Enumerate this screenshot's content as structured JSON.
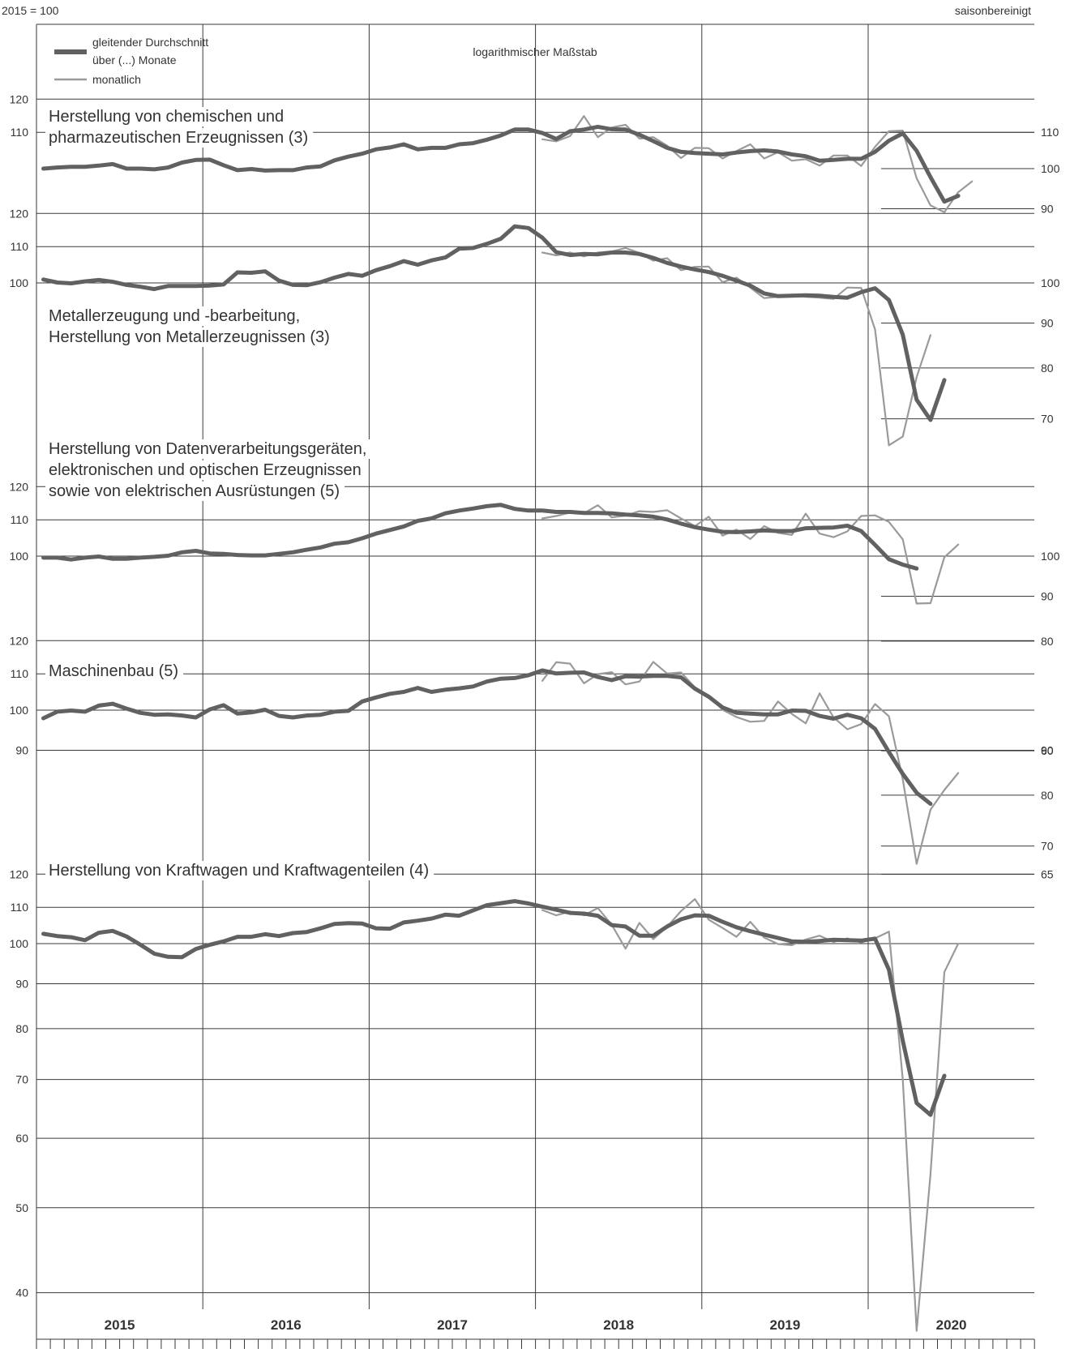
{
  "header": {
    "base": "2015 = 100",
    "adjustment": "saisonbereinigt",
    "scale_note": "logarithmischer Maßstab"
  },
  "legend": {
    "avg_line1": "gleitender Durchschnitt",
    "avg_line2": "über (...) Monate",
    "monthly": "monatlich"
  },
  "colors": {
    "avg": "#616161",
    "monthly": "#9a9a9a",
    "grid": "#3a3a3a",
    "text": "#333333"
  },
  "chart_data": [
    {
      "type": "line",
      "scale": "log",
      "title": [
        "Herstellung von chemischen und",
        "pharmazeutischen Erzeugnissen (3)"
      ],
      "left_ticks": [
        110,
        120
      ],
      "right_ticks": [
        90,
        100,
        110
      ],
      "series": [
        {
          "name": "gleitender Durchschnitt über (...) Monate",
          "start": "2015-01",
          "values": [
            100,
            100.3,
            100.5,
            100.5,
            100.8,
            101.2,
            100,
            100,
            99.8,
            100.3,
            101.6,
            102.3,
            102.4,
            100.9,
            99.6,
            99.9,
            99.5,
            99.6,
            99.6,
            100.3,
            100.6,
            102.2,
            103.2,
            104,
            105.2,
            105.7,
            106.6,
            105.2,
            105.6,
            105.6,
            106.6,
            106.9,
            107.9,
            109.1,
            110.8,
            110.8,
            109.8,
            108.1,
            110.3,
            110.8,
            111.6,
            110.9,
            110.8,
            109.3,
            107.5,
            105.6,
            104.5,
            104.2,
            104,
            103.8,
            104.3,
            104.7,
            104.9,
            104.6,
            103.8,
            103.3,
            102.1,
            102.3,
            102.6,
            102.6,
            104.5,
            107.6,
            109.7,
            104.8,
            97.8,
            91.7,
            93.1
          ]
        },
        {
          "name": "monatlich",
          "start": "2018-01",
          "values": [
            108,
            107.4,
            108.9,
            114.8,
            108.6,
            111.4,
            112.2,
            108.2,
            108.6,
            106.2,
            102.8,
            105.6,
            105.5,
            102.7,
            104.7,
            106.6,
            102.7,
            104.4,
            102.1,
            102.5,
            100.8,
            103.5,
            103.5,
            100.7,
            105.9,
            110.3,
            110.5,
            97.5,
            90.8,
            89.2,
            94,
            96.7
          ]
        }
      ]
    },
    {
      "type": "line",
      "scale": "log",
      "title": [
        "Metallerzeugung und -bearbeitung,",
        "Herstellung von Metallerzeugnissen (3)"
      ],
      "left_ticks": [
        100,
        110,
        120
      ],
      "right_ticks": [
        70,
        80,
        90,
        100
      ],
      "series": [
        {
          "name": "gleitender Durchschnitt über (...) Monate",
          "start": "2015-01",
          "values": [
            100.9,
            100.1,
            99.9,
            100.4,
            100.8,
            100.3,
            99.5,
            99,
            98.4,
            99.2,
            99.2,
            99.2,
            99.3,
            99.6,
            102.8,
            102.7,
            103.1,
            100.6,
            99.5,
            99.4,
            100.2,
            101.4,
            102.4,
            101.9,
            103.4,
            104.5,
            105.9,
            104.9,
            106.1,
            106.9,
            109.4,
            109.6,
            110.8,
            112.3,
            116,
            115.5,
            112.6,
            108.4,
            107.6,
            107.9,
            107.8,
            108.3,
            108.3,
            107.9,
            106.8,
            105.4,
            104.4,
            103.6,
            102.9,
            101.9,
            100.6,
            99.3,
            97.3,
            96.6,
            96.7,
            96.8,
            96.7,
            96.4,
            96.2,
            97.6,
            98.6,
            95.6,
            87.3,
            73.6,
            69.8,
            77.5
          ]
        },
        {
          "name": "monatlich",
          "start": "2018-01",
          "values": [
            108.3,
            107.5,
            108.3,
            107.2,
            108.3,
            108.6,
            109.6,
            108.2,
            106,
            106.7,
            103.4,
            104.3,
            104.4,
            100.2,
            101.4,
            98.8,
            96.1,
            96.4,
            97,
            96.4,
            96.2,
            95.9,
            98.8,
            98.7,
            88.5,
            65.3,
            66.8,
            78.1,
            87.2
          ]
        }
      ]
    },
    {
      "type": "line",
      "scale": "log",
      "title": [
        "Herstellung von Datenverarbeitungsgeräten,",
        "elektronischen und optischen Erzeugnissen",
        "sowie von elektrischen Ausrüstungen (5)"
      ],
      "left_ticks": [
        100,
        110,
        120
      ],
      "right_ticks": [
        60,
        80,
        90,
        100
      ],
      "series": [
        {
          "name": "gleitender Durchschnitt über (...) Monate",
          "start": "2015-01",
          "values": [
            99.6,
            99.6,
            99.1,
            99.6,
            99.9,
            99.3,
            99.3,
            99.6,
            99.8,
            100.1,
            101,
            101.4,
            100.7,
            100.6,
            100.3,
            100.2,
            100.2,
            100.6,
            101,
            101.7,
            102.3,
            103.3,
            103.7,
            104.8,
            106.1,
            107.1,
            108.1,
            109.7,
            110.4,
            111.9,
            112.7,
            113.3,
            114,
            114.4,
            113.2,
            112.7,
            112.7,
            112.3,
            112.3,
            112,
            112,
            111.9,
            111.5,
            111.3,
            110.9,
            110.1,
            108.9,
            107.9,
            107.2,
            106.6,
            106.5,
            106.7,
            107,
            106.8,
            106.8,
            107.6,
            107.7,
            107.8,
            108.3,
            106.8,
            103,
            99.2,
            97.8,
            96.8
          ]
        },
        {
          "name": "monatlich",
          "start": "2018-01",
          "values": [
            110.4,
            111.1,
            112.1,
            111.9,
            114.3,
            110.7,
            111.2,
            112.5,
            112.3,
            112.8,
            110.4,
            108.2,
            110.9,
            105.5,
            107.2,
            104.6,
            108.2,
            106.3,
            105.7,
            111.8,
            106.1,
            105.1,
            106.7,
            111.1,
            111.3,
            109.4,
            104.5,
            88.3,
            88.4,
            99.7,
            103.1
          ]
        }
      ]
    },
    {
      "type": "line",
      "scale": "log",
      "title": [
        "Maschinenbau (5)"
      ],
      "left_ticks": [
        90,
        100,
        110,
        120
      ],
      "right_ticks": [
        65,
        70,
        80,
        90
      ],
      "series": [
        {
          "name": "gleitender Durchschnitt über (...) Monate",
          "start": "2015-01",
          "values": [
            97.9,
            99.6,
            99.9,
            99.6,
            101.2,
            101.7,
            100.4,
            99.3,
            98.8,
            98.9,
            98.6,
            98.1,
            100.2,
            101.3,
            99.1,
            99.4,
            100.1,
            98.5,
            98.1,
            98.6,
            98.8,
            99.6,
            99.8,
            102.3,
            103.4,
            104.4,
            104.9,
            106,
            104.9,
            105.5,
            105.9,
            106.4,
            107.8,
            108.6,
            108.8,
            109.6,
            111,
            110.1,
            110.3,
            110.4,
            109.1,
            108.2,
            109.3,
            109.2,
            109.4,
            109.4,
            109,
            105.8,
            103.6,
            100.7,
            99.3,
            99.1,
            98.9,
            98.9,
            99.9,
            99.8,
            98.5,
            97.8,
            98.8,
            97.9,
            95.2,
            89.6,
            84.6,
            80.5,
            78.2
          ]
        },
        {
          "name": "monatlich",
          "start": "2018-01",
          "values": [
            108,
            113.4,
            113,
            107.3,
            109.9,
            110.5,
            107,
            107.8,
            113.5,
            110.1,
            110.4,
            106.2,
            103.9,
            100.1,
            98.2,
            97,
            97.2,
            102.3,
            99,
            96.6,
            104.5,
            98.1,
            95.1,
            96.4,
            101.6,
            98.4,
            83.4,
            66.8,
            77,
            81.1,
            84.8
          ]
        }
      ]
    },
    {
      "type": "line",
      "scale": "log",
      "title": [
        "Herstellung von Kraftwagen und Kraftwagenteilen (4)"
      ],
      "left_ticks": [
        40,
        50,
        60,
        70,
        80,
        90,
        100,
        110,
        120
      ],
      "right_ticks": [],
      "series": [
        {
          "name": "gleitender Durchschnitt über (...) Monate",
          "start": "2015-01",
          "values": [
            102.6,
            102,
            101.7,
            100.9,
            102.9,
            103.4,
            101.9,
            99.7,
            97.4,
            96.6,
            96.5,
            98.6,
            99.7,
            100.6,
            101.8,
            101.8,
            102.5,
            102,
            102.8,
            103.1,
            104.1,
            105.3,
            105.5,
            105.4,
            104.1,
            104,
            105.7,
            106.2,
            106.8,
            107.9,
            107.6,
            109.1,
            110.6,
            111.2,
            111.8,
            111.1,
            110.2,
            109.3,
            108.4,
            108.2,
            107.6,
            105,
            104.6,
            102.1,
            102.1,
            104.6,
            106.6,
            107.7,
            107.6,
            105.9,
            104.4,
            103.3,
            102.4,
            101.5,
            100.6,
            100.5,
            100.7,
            101,
            100.9,
            100.8,
            101.3,
            93.4,
            77.5,
            65.8,
            63.8,
            70.7
          ]
        },
        {
          "name": "monatlich",
          "start": "2018-01",
          "values": [
            109.2,
            107.7,
            108.8,
            107.7,
            109.8,
            105.1,
            98.7,
            105.6,
            101.2,
            104.5,
            108.9,
            112.4,
            106.5,
            104.2,
            101.8,
            105.9,
            101.6,
            99.9,
            99.6,
            101.1,
            102.1,
            100.4,
            101.4,
            100.3,
            101.4,
            103.2,
            70,
            36.2,
            54.6,
            92.8,
            100
          ]
        }
      ]
    }
  ],
  "x_axis": {
    "years": [
      "2015",
      "2016",
      "2017",
      "2018",
      "2019",
      "2020"
    ]
  }
}
